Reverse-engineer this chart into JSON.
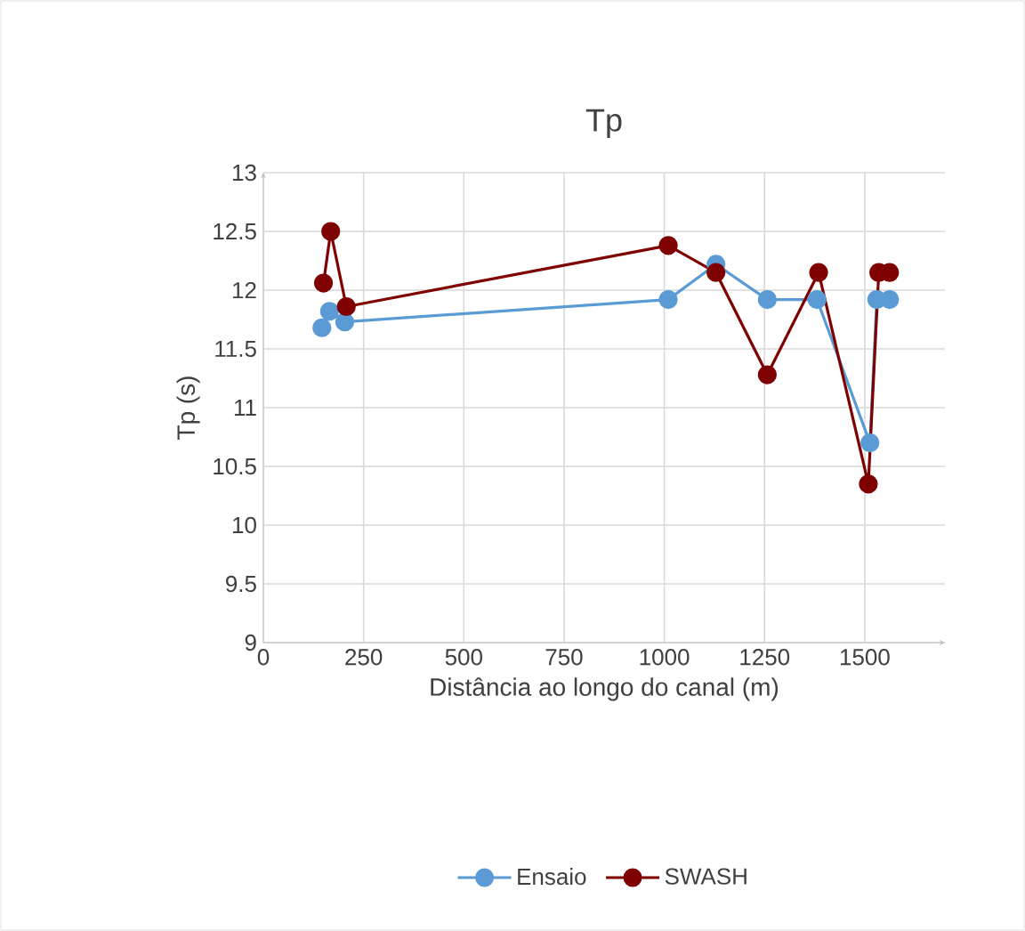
{
  "chart_data": {
    "type": "line",
    "title": "Tp",
    "xlabel": "Distância ao longo do canal (m)",
    "ylabel": "Tp (s)",
    "xlim": [
      0,
      1700
    ],
    "xticks": [
      0,
      250,
      500,
      750,
      1000,
      1250,
      1500
    ],
    "ylim": [
      9,
      13
    ],
    "yticks": [
      9,
      9.5,
      10,
      10.5,
      11,
      11.5,
      12,
      12.5,
      13
    ],
    "grid": true,
    "legend": "bottom",
    "marker": "circle",
    "line_style": "solid",
    "series": [
      {
        "name": "Ensaio",
        "color": "#5b9bd5",
        "x": [
          146,
          165,
          203,
          1010,
          1129,
          1257,
          1381,
          1513,
          1530,
          1562
        ],
        "values": [
          11.68,
          11.82,
          11.73,
          11.92,
          12.22,
          11.92,
          11.92,
          10.7,
          11.92,
          11.92
        ]
      },
      {
        "name": "SWASH",
        "color": "#7f0000",
        "x": [
          150,
          168,
          207,
          1010,
          1129,
          1257,
          1385,
          1509,
          1535,
          1562
        ],
        "values": [
          12.06,
          12.5,
          11.86,
          12.38,
          12.15,
          11.28,
          12.15,
          10.35,
          12.15,
          12.15
        ]
      }
    ]
  }
}
